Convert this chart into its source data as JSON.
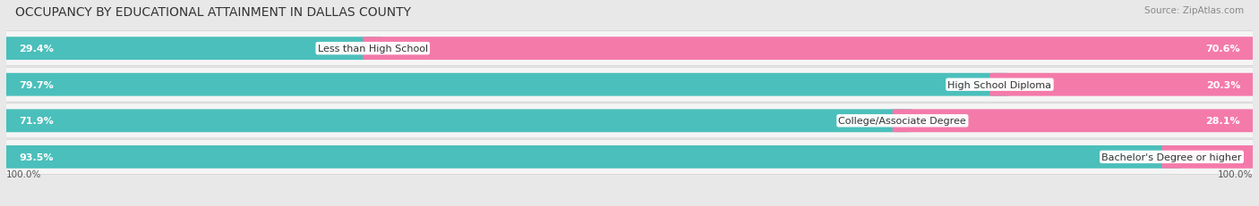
{
  "title": "OCCUPANCY BY EDUCATIONAL ATTAINMENT IN DALLAS COUNTY",
  "source": "Source: ZipAtlas.com",
  "categories": [
    "Less than High School",
    "High School Diploma",
    "College/Associate Degree",
    "Bachelor's Degree or higher"
  ],
  "owner_pct": [
    29.4,
    79.7,
    71.9,
    93.5
  ],
  "renter_pct": [
    70.6,
    20.3,
    28.1,
    6.5
  ],
  "owner_color": "#4bbfbb",
  "renter_color": "#f47aaa",
  "bg_color": "#e8e8e8",
  "row_bg_color": "#f5f5f5",
  "row_shadow_color": "#d0d0d0",
  "title_fontsize": 10,
  "label_fontsize": 8,
  "legend_fontsize": 8,
  "source_fontsize": 7.5,
  "axis_label_fontsize": 7.5,
  "left_axis_label": "100.0%",
  "right_axis_label": "100.0%"
}
